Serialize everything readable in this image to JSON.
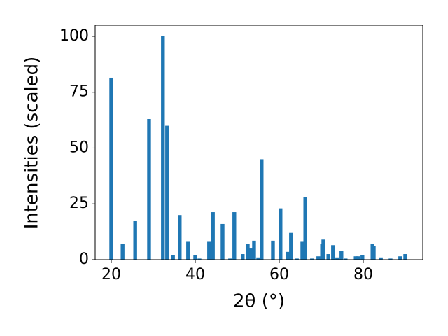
{
  "chart_data": {
    "type": "bar",
    "xlabel": "2θ (°)",
    "ylabel": "Intensities (scaled)",
    "color": "#1f77b4",
    "x": [
      20,
      22.7,
      25.7,
      29.0,
      32.3,
      33.3,
      34.7,
      36.3,
      38.3,
      40,
      41,
      43.3,
      44.2,
      46.5,
      48.3,
      49.3,
      51.3,
      52.5,
      53.2,
      54,
      55,
      55.8,
      58.5,
      60.3,
      62,
      62.8,
      64.2,
      65.5,
      66.2,
      67.8,
      69.3,
      70.2,
      70.5,
      71.7,
      72.8,
      73.8,
      74.8,
      75.8,
      78.2,
      78.8,
      79.8,
      82.2,
      82.5,
      84.2,
      86.5,
      88.8,
      90
    ],
    "values": [
      81.5,
      7,
      17.5,
      63,
      100,
      60,
      2,
      20,
      8,
      2,
      0.5,
      8,
      21.3,
      16,
      0.5,
      21.3,
      2.5,
      7,
      5,
      8.5,
      1,
      45,
      8.5,
      23,
      3.5,
      12,
      0.5,
      8,
      28,
      0.5,
      1.5,
      7,
      9,
      2.5,
      6.5,
      1,
      4,
      0.5,
      1.5,
      1.5,
      2,
      7,
      6,
      1,
      0.5,
      1.5,
      2.5
    ],
    "xlim": [
      16.17,
      94.17
    ],
    "ylim": [
      0,
      105
    ],
    "xticks": [
      20,
      40,
      60,
      80
    ],
    "yticks": [
      0,
      25,
      50,
      75,
      100
    ]
  }
}
